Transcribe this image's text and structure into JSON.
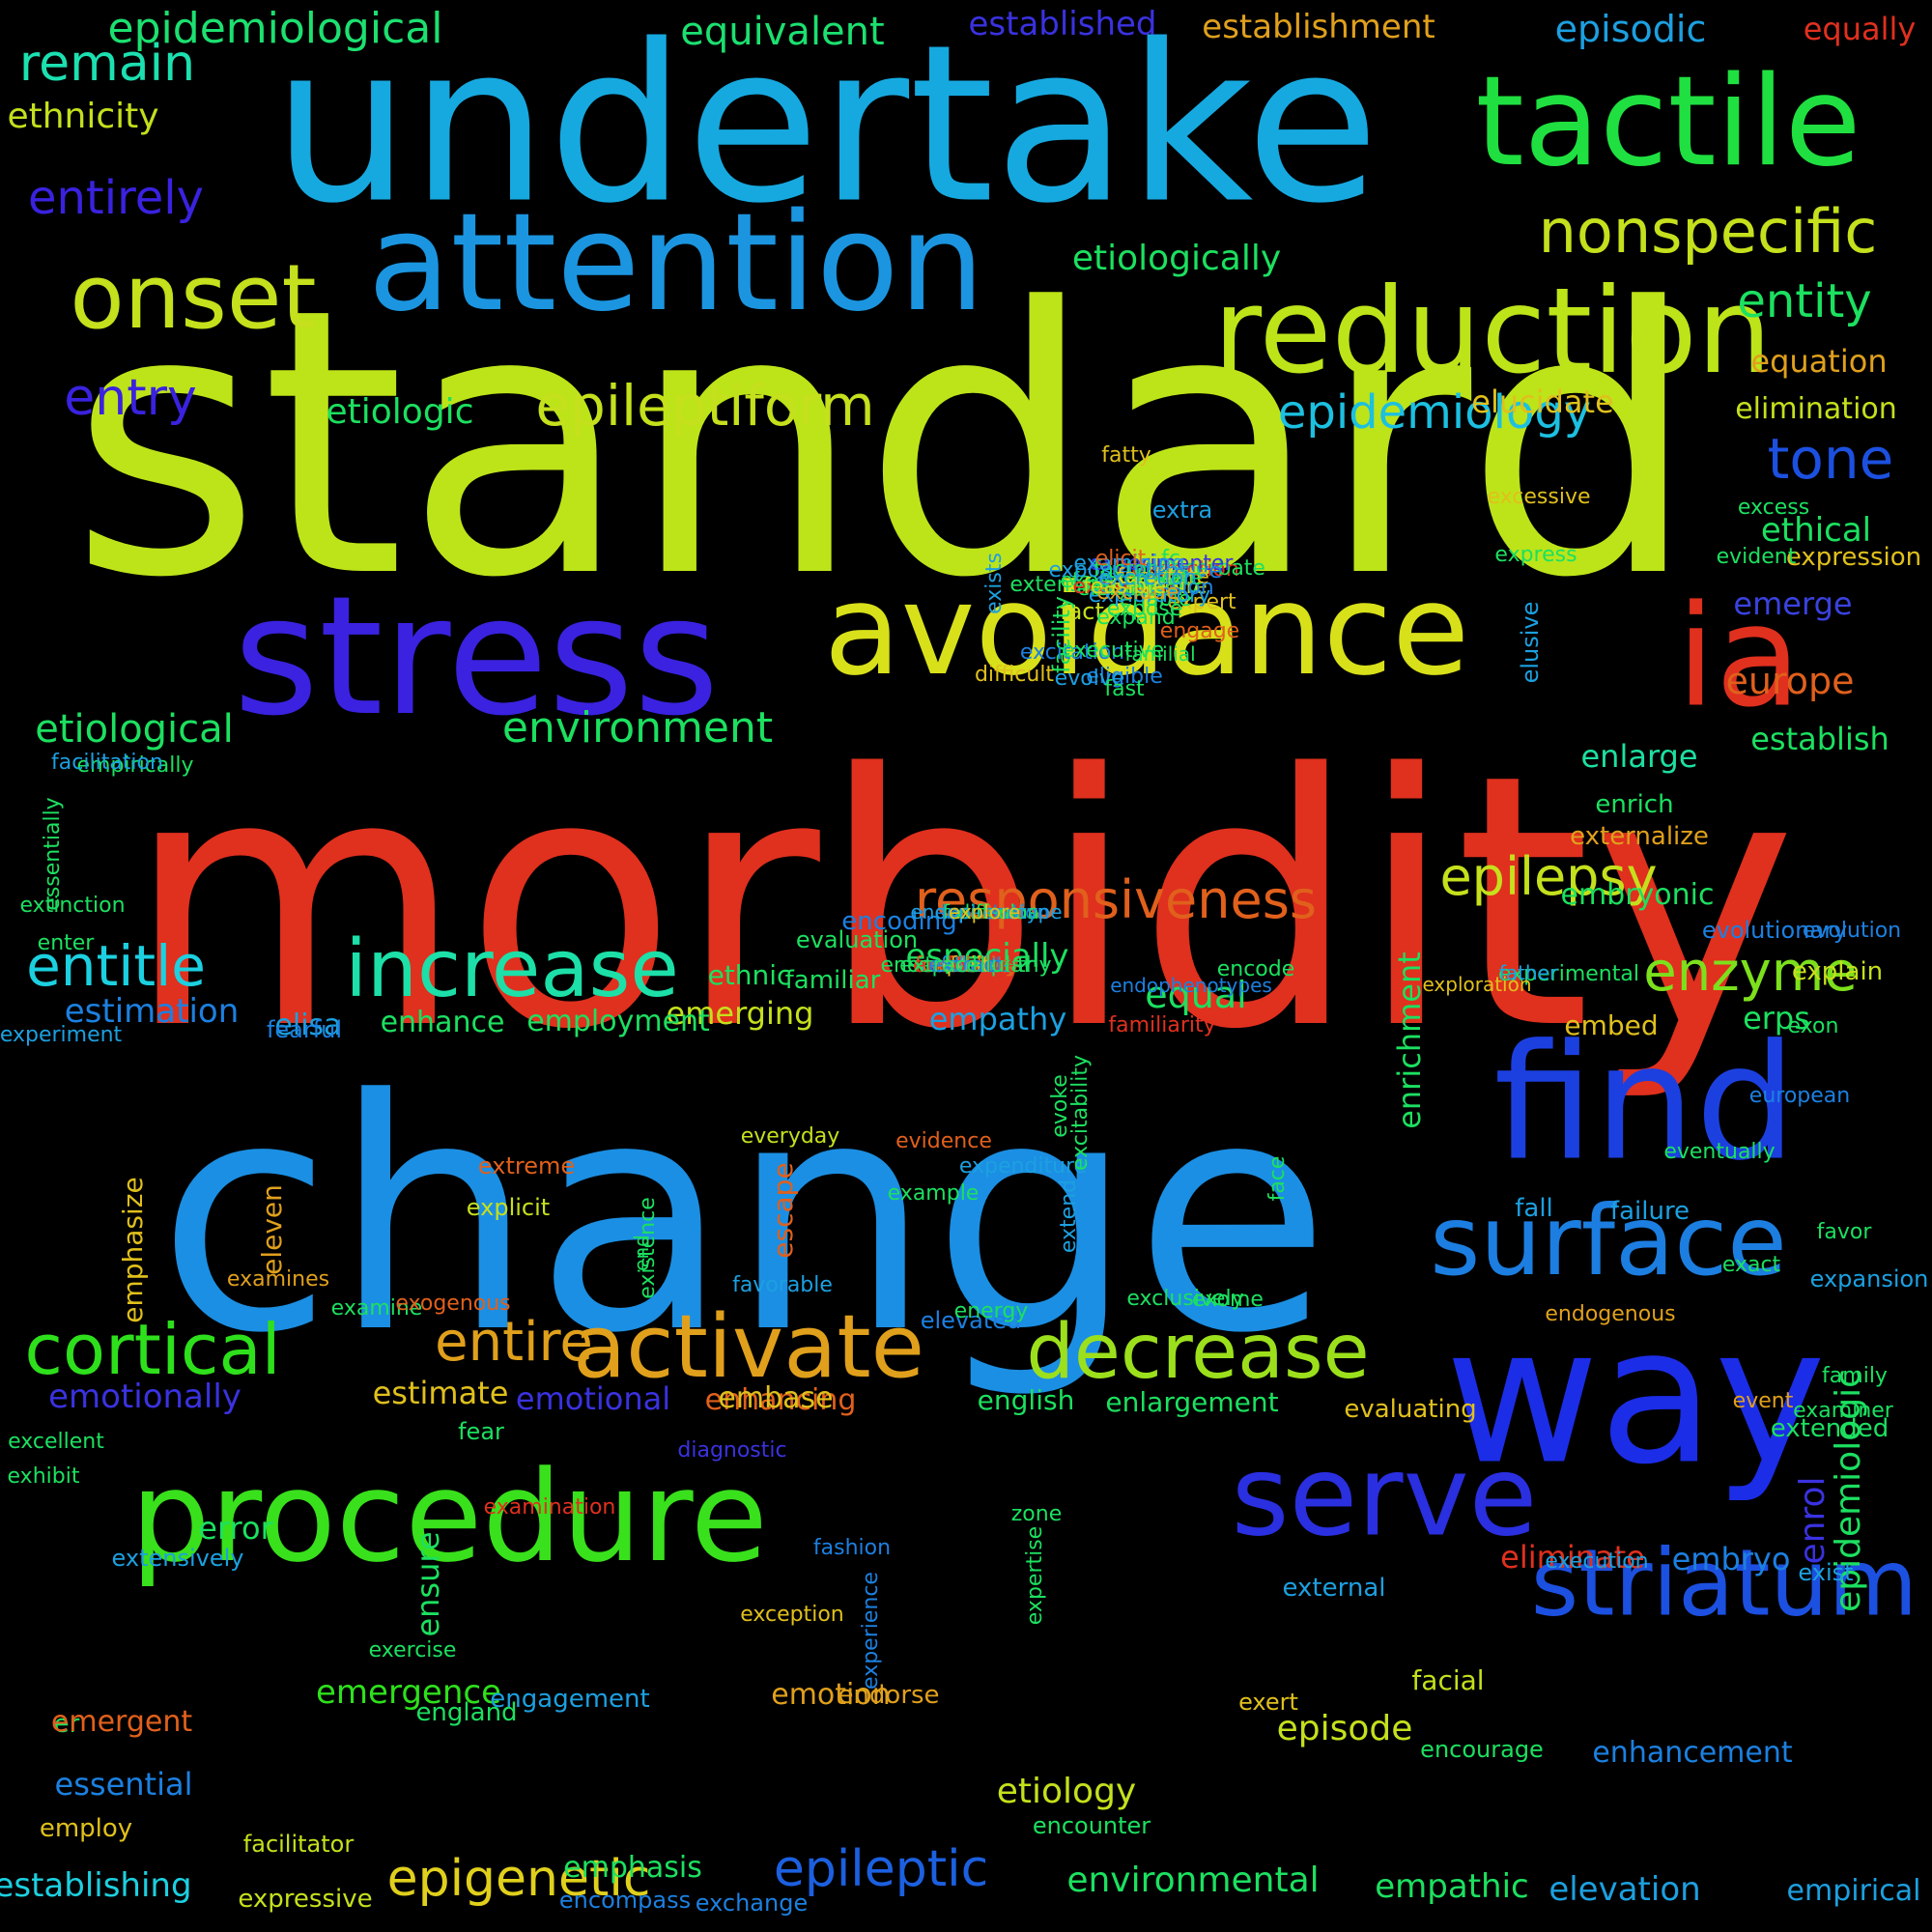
{
  "words": [
    {
      "text": "standard",
      "color": "#bde419"
    },
    {
      "text": "morbidity",
      "color": "#e0301e"
    },
    {
      "text": "change",
      "color": "#1b8fe3"
    },
    {
      "text": "undertake",
      "color": "#16a9e0"
    },
    {
      "text": "attention",
      "color": "#1b95e0"
    },
    {
      "text": "stress",
      "color": "#3a22e0"
    },
    {
      "text": "avoidance",
      "color": "#d8e01a"
    },
    {
      "text": "ia",
      "color": "#e0301e"
    },
    {
      "text": "tactile",
      "color": "#1fe040"
    },
    {
      "text": "reduction",
      "color": "#bde419"
    },
    {
      "text": "way",
      "color": "#1c2de8"
    },
    {
      "text": "find",
      "color": "#1c40e0"
    },
    {
      "text": "procedure",
      "color": "#39e01c"
    },
    {
      "text": "serve",
      "color": "#2a2fe0"
    },
    {
      "text": "striatum",
      "color": "#1c50e0"
    },
    {
      "text": "surface",
      "color": "#1c7ee0"
    },
    {
      "text": "activate",
      "color": "#e0a01c"
    },
    {
      "text": "decrease",
      "color": "#9ce01c"
    },
    {
      "text": "increase",
      "color": "#1ce0a8"
    },
    {
      "text": "cortical",
      "color": "#2ee01c"
    },
    {
      "text": "onset",
      "color": "#c5e01c"
    },
    {
      "text": "tone",
      "color": "#1c50e0"
    },
    {
      "text": "nonspecific",
      "color": "#c5e01c"
    },
    {
      "text": "epileptiform",
      "color": "#c5e01c"
    },
    {
      "text": "epidemiology",
      "color": "#1cc0e0"
    },
    {
      "text": "responsiveness",
      "color": "#e0601c"
    },
    {
      "text": "epilepsy",
      "color": "#c5e01c"
    },
    {
      "text": "entitle",
      "color": "#1cd0e0"
    },
    {
      "text": "enzyme",
      "color": "#7ce01c"
    },
    {
      "text": "entire",
      "color": "#e0a01c"
    },
    {
      "text": "epigenetic",
      "color": "#e0d01c"
    },
    {
      "text": "epileptic",
      "color": "#1c60e0"
    },
    {
      "text": "entirely",
      "color": "#3a22e0"
    },
    {
      "text": "remain",
      "color": "#1ce0b0"
    },
    {
      "text": "entry",
      "color": "#3a22e0"
    },
    {
      "text": "environment",
      "color": "#1ce060"
    },
    {
      "text": "etiological",
      "color": "#1ce060"
    },
    {
      "text": "emergence",
      "color": "#2ee01c"
    },
    {
      "text": "epidemiological",
      "color": "#1ce070"
    },
    {
      "text": "equivalent",
      "color": "#1ce070"
    },
    {
      "text": "established",
      "color": "#3a32e0"
    },
    {
      "text": "establishment",
      "color": "#e0a01c"
    },
    {
      "text": "episodic",
      "color": "#1ca0e0"
    },
    {
      "text": "equally",
      "color": "#e0301e"
    },
    {
      "text": "ethnicity",
      "color": "#c5e01c"
    },
    {
      "text": "etiologically",
      "color": "#1ce060"
    },
    {
      "text": "entity",
      "color": "#1ce060"
    },
    {
      "text": "equation",
      "color": "#e0a01c"
    },
    {
      "text": "elimination",
      "color": "#c5e01c"
    },
    {
      "text": "etiologic",
      "color": "#1ce060"
    },
    {
      "text": "elucidate",
      "color": "#e0c01c"
    },
    {
      "text": "ethical",
      "color": "#1ce060"
    },
    {
      "text": "emerge",
      "color": "#3a42e0"
    },
    {
      "text": "expression",
      "color": "#e0c01c"
    },
    {
      "text": "europe",
      "color": "#e0601c"
    },
    {
      "text": "establish",
      "color": "#1ce060"
    },
    {
      "text": "enlarge",
      "color": "#1ce0a0"
    },
    {
      "text": "enrich",
      "color": "#1ce060"
    },
    {
      "text": "externalize",
      "color": "#e0a01c"
    },
    {
      "text": "embryonic",
      "color": "#1ce060"
    },
    {
      "text": "evolutionary",
      "color": "#1c80e0"
    },
    {
      "text": "evolution",
      "color": "#1c80e0"
    },
    {
      "text": "explain",
      "color": "#c5e01c"
    },
    {
      "text": "exon",
      "color": "#1ce060"
    },
    {
      "text": "erps",
      "color": "#1ce060"
    },
    {
      "text": "embed",
      "color": "#e0c01c"
    },
    {
      "text": "equal",
      "color": "#1ce060"
    },
    {
      "text": "empathy",
      "color": "#1ca0e0"
    },
    {
      "text": "emerging",
      "color": "#c5e01c"
    },
    {
      "text": "ethnic",
      "color": "#1ce060"
    },
    {
      "text": "especially",
      "color": "#1ce060"
    },
    {
      "text": "employment",
      "color": "#1ce060"
    },
    {
      "text": "enhance",
      "color": "#1ce060"
    },
    {
      "text": "estimation",
      "color": "#1c80e0"
    },
    {
      "text": "elisa",
      "color": "#1ca0e0"
    },
    {
      "text": "fearful",
      "color": "#1c80e0"
    },
    {
      "text": "experiment",
      "color": "#1ca0e0"
    },
    {
      "text": "emotionally",
      "color": "#3a32e0"
    },
    {
      "text": "emotional",
      "color": "#3a32e0"
    },
    {
      "text": "estimate",
      "color": "#e0c01c"
    },
    {
      "text": "enhancing",
      "color": "#e0601c"
    },
    {
      "text": "embase",
      "color": "#e0c01c"
    },
    {
      "text": "english",
      "color": "#1ce060"
    },
    {
      "text": "enlargement",
      "color": "#1ce060"
    },
    {
      "text": "evaluating",
      "color": "#e0c01c"
    },
    {
      "text": "excellent",
      "color": "#1ce060"
    },
    {
      "text": "exhibit",
      "color": "#1ce060"
    },
    {
      "text": "error",
      "color": "#1ce060"
    },
    {
      "text": "extensively",
      "color": "#1ca0e0"
    },
    {
      "text": "eliminate",
      "color": "#e0301e"
    },
    {
      "text": "execution",
      "color": "#1ca0e0"
    },
    {
      "text": "embryo",
      "color": "#1c80e0"
    },
    {
      "text": "enrol",
      "color": "#3a32e0"
    },
    {
      "text": "epidemiologic",
      "color": "#1ce060"
    },
    {
      "text": "exist",
      "color": "#1ca0e0"
    },
    {
      "text": "extended",
      "color": "#1ce060"
    },
    {
      "text": "event",
      "color": "#e0a01c"
    },
    {
      "text": "endogenous",
      "color": "#e0a01c"
    },
    {
      "text": "exact",
      "color": "#1ce060"
    },
    {
      "text": "favor",
      "color": "#1ce060"
    },
    {
      "text": "failure",
      "color": "#1ca0e0"
    },
    {
      "text": "fall",
      "color": "#1ca0e0"
    },
    {
      "text": "eventually",
      "color": "#1ce060"
    },
    {
      "text": "european",
      "color": "#1c80e0"
    },
    {
      "text": "expansion",
      "color": "#1ca0e0"
    },
    {
      "text": "family",
      "color": "#1ce060"
    },
    {
      "text": "examiner",
      "color": "#1ce060"
    },
    {
      "text": "empirical",
      "color": "#1ca0e0"
    },
    {
      "text": "elevation",
      "color": "#1ca0e0"
    },
    {
      "text": "empathic",
      "color": "#1ce060"
    },
    {
      "text": "enhancement",
      "color": "#1c80e0"
    },
    {
      "text": "encourage",
      "color": "#1ce060"
    },
    {
      "text": "episode",
      "color": "#c5e01c"
    },
    {
      "text": "facial",
      "color": "#c5e01c"
    },
    {
      "text": "external",
      "color": "#1ca0e0"
    },
    {
      "text": "exert",
      "color": "#e0c01c"
    },
    {
      "text": "emotion",
      "color": "#e0a01c"
    },
    {
      "text": "endorse",
      "color": "#e0a01c"
    },
    {
      "text": "engagement",
      "color": "#1ca0e0"
    },
    {
      "text": "england",
      "color": "#1ce060"
    },
    {
      "text": "er",
      "color": "#1ce060"
    },
    {
      "text": "emergent",
      "color": "#e0601c"
    },
    {
      "text": "essential",
      "color": "#1c80e0"
    },
    {
      "text": "employ",
      "color": "#e0c01c"
    },
    {
      "text": "establishing",
      "color": "#1cd0e0"
    },
    {
      "text": "facilitator",
      "color": "#c5e01c"
    },
    {
      "text": "expressive",
      "color": "#c5e01c"
    },
    {
      "text": "emphasis",
      "color": "#1ce060"
    },
    {
      "text": "encompass",
      "color": "#1c80e0"
    },
    {
      "text": "exchange",
      "color": "#1c80e0"
    },
    {
      "text": "environmental",
      "color": "#1ce060"
    },
    {
      "text": "etiology",
      "color": "#c5e01c"
    },
    {
      "text": "encounter",
      "color": "#1ce060"
    },
    {
      "text": "exercise",
      "color": "#1ce060"
    },
    {
      "text": "ensure",
      "color": "#1ce060"
    },
    {
      "text": "fashion",
      "color": "#1c80e0"
    },
    {
      "text": "experience",
      "color": "#1c80e0"
    },
    {
      "text": "exception",
      "color": "#e0c01c"
    },
    {
      "text": "zone",
      "color": "#1ce060"
    },
    {
      "text": "expertise",
      "color": "#1ce060"
    },
    {
      "text": "examination",
      "color": "#e0301e"
    },
    {
      "text": "fear",
      "color": "#1ce060"
    },
    {
      "text": "diagnostic",
      "color": "#3a32e0"
    },
    {
      "text": "elevated",
      "color": "#1c80e0"
    },
    {
      "text": "energy",
      "color": "#1ce060"
    },
    {
      "text": "exclusively",
      "color": "#1ce060"
    },
    {
      "text": "exome",
      "color": "#1ce060"
    },
    {
      "text": "favorable",
      "color": "#1ca0e0"
    },
    {
      "text": "examine",
      "color": "#1ce060"
    },
    {
      "text": "exogenous",
      "color": "#e0601c"
    },
    {
      "text": "examines",
      "color": "#e0a01c"
    },
    {
      "text": "emphasize",
      "color": "#e0c01c"
    },
    {
      "text": "eleven",
      "color": "#e0a01c"
    },
    {
      "text": "escape",
      "color": "#e0601c"
    },
    {
      "text": "end",
      "color": "#1ce060"
    },
    {
      "text": "existence",
      "color": "#1ce060"
    },
    {
      "text": "extreme",
      "color": "#e0601c"
    },
    {
      "text": "explicit",
      "color": "#c5e01c"
    },
    {
      "text": "everyday",
      "color": "#c5e01c"
    },
    {
      "text": "evidence",
      "color": "#e0601c"
    },
    {
      "text": "example",
      "color": "#1ce060"
    },
    {
      "text": "face",
      "color": "#1ce060"
    },
    {
      "text": "extend",
      "color": "#1ca0e0"
    },
    {
      "text": "expenditure",
      "color": "#1ca0e0"
    },
    {
      "text": "evoke",
      "color": "#1ce060"
    },
    {
      "text": "excitability",
      "color": "#1ce060"
    },
    {
      "text": "enrichment",
      "color": "#1ce060"
    },
    {
      "text": "familiarity",
      "color": "#e0301e"
    },
    {
      "text": "encode",
      "color": "#1ce060"
    },
    {
      "text": "endophenotypes",
      "color": "#1c80e0"
    },
    {
      "text": "experimental",
      "color": "#1ce060"
    },
    {
      "text": "exploration",
      "color": "#e0c01c"
    },
    {
      "text": "father",
      "color": "#1ca0e0"
    },
    {
      "text": "familiar",
      "color": "#1ce060"
    },
    {
      "text": "encoding",
      "color": "#1c80e0"
    },
    {
      "text": "evaluation",
      "color": "#1ce060"
    },
    {
      "text": "enter",
      "color": "#1ce060"
    },
    {
      "text": "extinction",
      "color": "#1ce060"
    },
    {
      "text": "essentially",
      "color": "#1ce060"
    },
    {
      "text": "empirically",
      "color": "#1ce060"
    },
    {
      "text": "facilitation",
      "color": "#1ca0e0"
    },
    {
      "text": "fatty",
      "color": "#e0c01c"
    },
    {
      "text": "express",
      "color": "#1ce060"
    },
    {
      "text": "elusive",
      "color": "#1ca0e0"
    },
    {
      "text": "excess",
      "color": "#1ce060"
    },
    {
      "text": "evident",
      "color": "#1ce060"
    },
    {
      "text": "excessive",
      "color": "#e0c01c"
    },
    {
      "text": "extra",
      "color": "#1ca0e0"
    },
    {
      "text": "fc",
      "color": "#1ce060"
    },
    {
      "text": "expert",
      "color": "#e0c01c"
    },
    {
      "text": "erp",
      "color": "#1c80e0"
    },
    {
      "text": "familial",
      "color": "#1ce060"
    },
    {
      "text": "engage",
      "color": "#e0601c"
    },
    {
      "text": "explanation",
      "color": "#1ce060"
    },
    {
      "text": "fact",
      "color": "#c5e01c"
    },
    {
      "text": "facility",
      "color": "#1ce060"
    },
    {
      "text": "difficult",
      "color": "#e0c01c"
    },
    {
      "text": "eligible",
      "color": "#1c80e0"
    },
    {
      "text": "excitation",
      "color": "#1c80e0"
    },
    {
      "text": "evolve",
      "color": "#1ca0e0"
    },
    {
      "text": "exists",
      "color": "#1ca0e0"
    },
    {
      "text": "fa",
      "color": "#1ce060"
    },
    {
      "text": "executive",
      "color": "#1ce060"
    },
    {
      "text": "fast",
      "color": "#1ce060"
    },
    {
      "text": "expose",
      "color": "#1ce060"
    },
    {
      "text": "elementary",
      "color": "#1ce060"
    },
    {
      "text": "extension",
      "color": "#1ce060"
    },
    {
      "text": "exposure",
      "color": "#1ca0e0"
    },
    {
      "text": "extraction",
      "color": "#e0301e"
    },
    {
      "text": "extremely",
      "color": "#e0301e"
    },
    {
      "text": "exacerbate",
      "color": "#1ce060"
    },
    {
      "text": "feature",
      "color": "#c5e01c"
    },
    {
      "text": "experimenter",
      "color": "#3a32e0"
    },
    {
      "text": "extensive",
      "color": "#1c80e0"
    },
    {
      "text": "enable",
      "color": "#1ce060"
    },
    {
      "text": "extends",
      "color": "#1ce060"
    },
    {
      "text": "factor",
      "color": "#1ce060"
    },
    {
      "text": "examining",
      "color": "#1ca0e0"
    },
    {
      "text": "facilitate",
      "color": "#e0c01c"
    },
    {
      "text": "exceed",
      "color": "#c5e01c"
    },
    {
      "text": "expand",
      "color": "#1ce060"
    },
    {
      "text": "exploratory",
      "color": "#1ca0e0"
    },
    {
      "text": "elicit",
      "color": "#e0601c"
    },
    {
      "text": "emission",
      "color": "#1c80e0"
    },
    {
      "text": "en2",
      "color": "#1ce060"
    },
    {
      "text": "exclude",
      "color": "#e0a01c"
    },
    {
      "text": "elevate",
      "color": "#1ce060"
    },
    {
      "text": "feasible",
      "color": "#c5e01c"
    },
    {
      "text": "excretion",
      "color": "#1ca0e0"
    },
    {
      "text": "exclusion",
      "color": "#1ce060"
    },
    {
      "text": "expectation",
      "color": "#1c80e0"
    },
    {
      "text": "fasciculus",
      "color": "#1ce060"
    },
    {
      "text": "differs",
      "color": "#1ce060"
    },
    {
      "text": "endophenotype",
      "color": "#1ca0e0"
    },
    {
      "text": "explore",
      "color": "#e0c01c"
    },
    {
      "text": "extent",
      "color": "#e0301e"
    },
    {
      "text": "fail",
      "color": "#e0c01c"
    },
    {
      "text": "explores",
      "color": "#e0c01c"
    },
    {
      "text": "evaluate",
      "color": "#1ca0e0"
    },
    {
      "text": "excitatory",
      "color": "#e0601c"
    },
    {
      "text": "false",
      "color": "#1ca0e0"
    },
    {
      "text": "feasibility",
      "color": "#e0601c"
    },
    {
      "text": "encephalopathy",
      "color": "#1ce060"
    },
    {
      "text": "endocrine",
      "color": "#e0301e"
    },
    {
      "text": "exonic",
      "color": "#1ca0e0"
    },
    {
      "text": "emit",
      "color": "#e0c01c"
    },
    {
      "text": "extract",
      "color": "#1c80e0"
    },
    {
      "text": "extracellular",
      "color": "#1ce060"
    }
  ]
}
